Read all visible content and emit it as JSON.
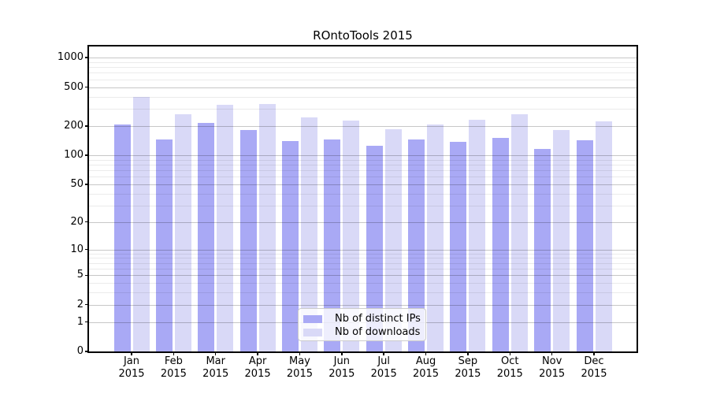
{
  "colors": {
    "ips": "#a9a9f5",
    "downloads": "#d9d9f7",
    "axis": "#000000",
    "grid_major": "rgba(0,0,0,0.22)",
    "grid_minor": "rgba(0,0,0,0.08)",
    "legend_border": "#cccccc"
  },
  "legend": {
    "position": "lower-center-inside"
  },
  "chart_data": {
    "type": "bar",
    "title": "ROntoTools 2015",
    "xlabel": "",
    "ylabel": "",
    "yscale": "log1p",
    "grid": true,
    "ylim": [
      0,
      1300
    ],
    "yticks": [
      0,
      1,
      2,
      5,
      10,
      20,
      50,
      100,
      200,
      500,
      1000
    ],
    "minor_gridlines": [
      3,
      4,
      6,
      7,
      8,
      9,
      30,
      40,
      60,
      70,
      80,
      90,
      300,
      400,
      600,
      700,
      800,
      900
    ],
    "categories": [
      "Jan 2015",
      "Feb 2015",
      "Mar 2015",
      "Apr 2015",
      "May 2015",
      "Jun 2015",
      "Jul 2015",
      "Aug 2015",
      "Sep 2015",
      "Oct 2015",
      "Nov 2015",
      "Dec 2015"
    ],
    "series": [
      {
        "name": "Nb of distinct IPs",
        "color_key": "ips",
        "values": [
          208,
          144,
          215,
          180,
          141,
          146,
          124,
          144,
          136,
          150,
          115,
          143
        ]
      },
      {
        "name": "Nb of downloads",
        "color_key": "downloads",
        "values": [
          400,
          265,
          328,
          333,
          246,
          225,
          186,
          205,
          230,
          265,
          180,
          222
        ]
      }
    ]
  }
}
